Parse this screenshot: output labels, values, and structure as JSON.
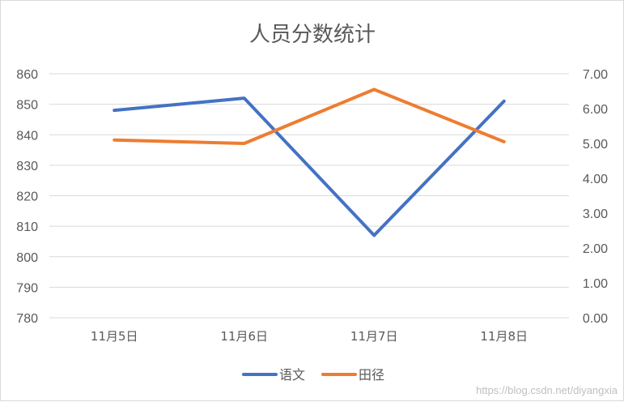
{
  "chart_data": {
    "type": "line",
    "title": "人员分数统计",
    "categories": [
      "11月5日",
      "11月6日",
      "11月7日",
      "11月8日"
    ],
    "series": [
      {
        "name": "语文",
        "axis": "left",
        "color": "#4472c4",
        "values": [
          848,
          852,
          807,
          851
        ]
      },
      {
        "name": "田径",
        "axis": "right",
        "color": "#ed7d31",
        "values": [
          5.1,
          5.0,
          6.55,
          5.05
        ]
      }
    ],
    "y_left": {
      "ylim": [
        780,
        860
      ],
      "ticks": [
        "780",
        "790",
        "800",
        "810",
        "820",
        "830",
        "840",
        "850",
        "860"
      ]
    },
    "y_right": {
      "ylim": [
        0,
        7
      ],
      "ticks": [
        "0.00",
        "1.00",
        "2.00",
        "3.00",
        "4.00",
        "5.00",
        "6.00",
        "7.00"
      ]
    },
    "grid": true,
    "legend_position": "bottom"
  },
  "watermark": "https://blog.csdn.net/diyangxia"
}
